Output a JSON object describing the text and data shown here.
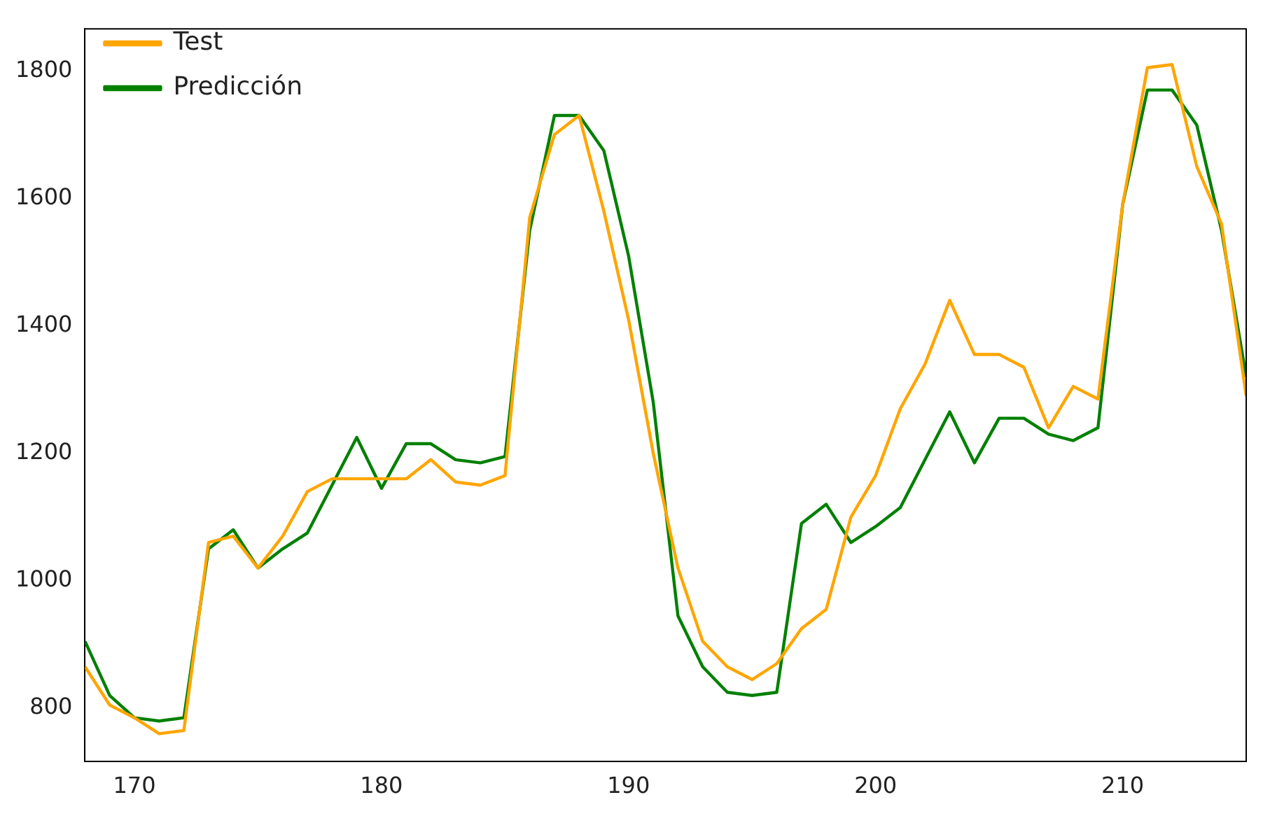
{
  "chart_data": {
    "type": "line",
    "x": [
      168,
      169,
      170,
      171,
      172,
      173,
      174,
      175,
      176,
      177,
      178,
      179,
      180,
      181,
      182,
      183,
      184,
      185,
      186,
      187,
      188,
      189,
      190,
      191,
      192,
      193,
      194,
      195,
      196,
      197,
      198,
      199,
      200,
      201,
      202,
      203,
      204,
      205,
      206,
      207,
      208,
      209,
      210,
      211,
      212,
      213,
      214,
      215
    ],
    "series": [
      {
        "name": "Test",
        "color": "#ffa500",
        "values": [
          865,
          805,
          785,
          760,
          765,
          1060,
          1070,
          1020,
          1070,
          1140,
          1160,
          1160,
          1160,
          1160,
          1190,
          1155,
          1150,
          1165,
          1570,
          1700,
          1730,
          1580,
          1410,
          1200,
          1020,
          905,
          865,
          845,
          870,
          925,
          955,
          1100,
          1165,
          1270,
          1340,
          1440,
          1355,
          1355,
          1335,
          1240,
          1305,
          1285,
          1590,
          1805,
          1810,
          1650,
          1560,
          1290
        ]
      },
      {
        "name": "Predicción",
        "color": "#008000",
        "values": [
          905,
          820,
          785,
          780,
          785,
          1050,
          1080,
          1020,
          1050,
          1075,
          1150,
          1225,
          1145,
          1215,
          1215,
          1190,
          1185,
          1195,
          1550,
          1730,
          1730,
          1675,
          1510,
          1280,
          945,
          865,
          825,
          820,
          825,
          1090,
          1120,
          1060,
          1085,
          1115,
          1190,
          1265,
          1185,
          1255,
          1255,
          1230,
          1220,
          1240,
          1590,
          1770,
          1770,
          1715,
          1550,
          1320
        ]
      }
    ],
    "xlim": [
      168,
      215
    ],
    "xticks": [
      170,
      180,
      190,
      200,
      210
    ],
    "ylim": [
      717,
      1866
    ],
    "yticks": [
      800,
      1000,
      1200,
      1400,
      1600,
      1800
    ],
    "grid": false,
    "legend": "top left",
    "marker": "none",
    "line_style": "solid"
  }
}
